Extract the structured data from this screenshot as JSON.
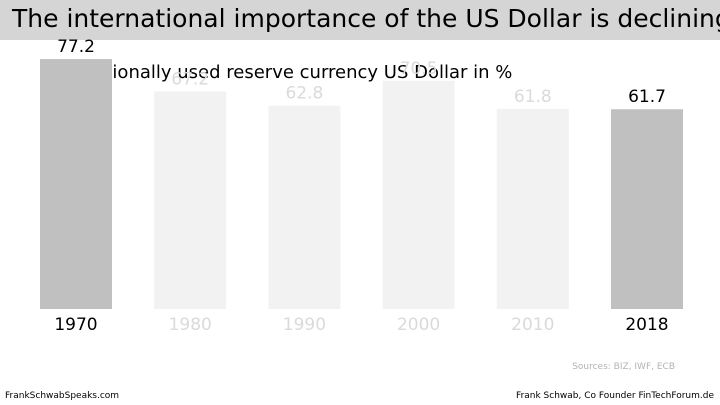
{
  "header": {
    "title": "The international importance of the US Dollar is declining"
  },
  "colors": {
    "highlight_bar": "#c0c0c0",
    "faded_bar": "#f2f2f2",
    "highlight_text": "#000000",
    "faded_text": "#dadada",
    "title_band": "#d5d5d5"
  },
  "chart_data": {
    "type": "bar",
    "title": "Internationally used reserve currency US Dollar in %",
    "xlabel": "",
    "ylabel": "",
    "ylim": [
      0,
      80
    ],
    "grid": false,
    "categories": [
      "1970",
      "1980",
      "1990",
      "2000",
      "2010",
      "2018"
    ],
    "values": [
      77.2,
      67.2,
      62.8,
      70.5,
      61.8,
      61.7
    ],
    "value_labels": [
      "77.2",
      "67.2",
      "62.8",
      "70.5",
      "61.8",
      "61.7"
    ],
    "highlighted": [
      true,
      false,
      false,
      false,
      false,
      true
    ]
  },
  "footer": {
    "sources": "Sources: BIZ, IWF, ECB",
    "left": "FrankSchwabSpeaks.com",
    "right": "Frank Schwab, Co Founder FinTechForum.de"
  }
}
